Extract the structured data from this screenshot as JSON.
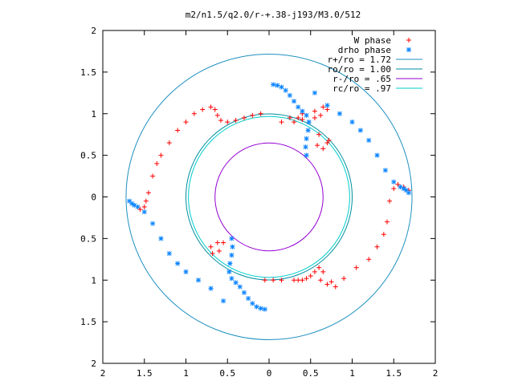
{
  "chart_data": {
    "type": "scatter",
    "title": "m2/n1.5/q2.0/r-+.38-j193/M3.0/512",
    "xlim": [
      -2,
      2
    ],
    "ylim": [
      -2,
      2
    ],
    "x_ticks": [
      "2",
      "1.5",
      "1",
      "0.5",
      "0",
      "0.5",
      "1",
      "1.5",
      "2"
    ],
    "y_ticks": [
      "2",
      "1.5",
      "1",
      "0.5",
      "0",
      "0.5",
      "1",
      "1.5",
      "2"
    ],
    "grid": false,
    "legend_position": "top-right",
    "series": [
      {
        "name": "W phase",
        "marker": "plus",
        "color": "#ff0000",
        "points": [
          [
            0.3,
            0.9
          ],
          [
            0.35,
            0.95
          ],
          [
            0.4,
            1.0
          ],
          [
            0.55,
            1.03
          ],
          [
            0.65,
            1.08
          ],
          [
            0.7,
            1.05
          ],
          [
            0.62,
            0.98
          ],
          [
            0.55,
            0.95
          ],
          [
            0.4,
            0.93
          ],
          [
            0.25,
            0.95
          ],
          [
            0.15,
            0.9
          ],
          [
            0.7,
            0.65
          ],
          [
            0.6,
            0.75
          ],
          [
            0.58,
            0.62
          ],
          [
            0.65,
            0.58
          ],
          [
            0.72,
            0.68
          ],
          [
            1.68,
            0.08
          ],
          [
            1.62,
            0.12
          ],
          [
            1.55,
            0.15
          ],
          [
            1.5,
            0.1
          ],
          [
            1.45,
            -0.05
          ],
          [
            1.42,
            -0.3
          ],
          [
            1.38,
            -0.45
          ],
          [
            1.3,
            -0.6
          ],
          [
            1.2,
            -0.75
          ],
          [
            1.05,
            -0.85
          ],
          [
            0.9,
            -0.98
          ],
          [
            0.8,
            -1.08
          ],
          [
            0.75,
            -1.02
          ],
          [
            0.7,
            -1.05
          ],
          [
            0.62,
            -1.0
          ],
          [
            0.65,
            -0.9
          ],
          [
            0.6,
            -0.85
          ],
          [
            0.55,
            -0.9
          ],
          [
            0.5,
            -0.95
          ],
          [
            0.45,
            -0.98
          ],
          [
            0.4,
            -1.0
          ],
          [
            0.35,
            -1.0
          ],
          [
            0.3,
            -1.0
          ],
          [
            0.15,
            -1.0
          ],
          [
            0.05,
            -1.0
          ],
          [
            -0.05,
            -1.0
          ],
          [
            -0.7,
            -0.6
          ],
          [
            -0.6,
            -0.65
          ],
          [
            -0.55,
            -0.55
          ],
          [
            -0.62,
            -0.55
          ],
          [
            -0.68,
            -0.68
          ],
          [
            -1.55,
            -0.15
          ],
          [
            -1.5,
            -0.12
          ],
          [
            -1.48,
            -0.05
          ],
          [
            -1.45,
            0.05
          ],
          [
            -1.4,
            0.25
          ],
          [
            -1.35,
            0.4
          ],
          [
            -1.3,
            0.5
          ],
          [
            -1.2,
            0.65
          ],
          [
            -1.1,
            0.8
          ],
          [
            -1.0,
            0.9
          ],
          [
            -0.9,
            1.0
          ],
          [
            -0.8,
            1.05
          ],
          [
            -0.7,
            1.08
          ],
          [
            -0.65,
            1.05
          ],
          [
            -0.62,
            0.98
          ],
          [
            -0.58,
            0.92
          ],
          [
            -0.5,
            0.9
          ],
          [
            -0.4,
            0.92
          ],
          [
            -0.3,
            0.95
          ],
          [
            -0.2,
            0.98
          ],
          [
            -0.1,
            1.0
          ]
        ]
      },
      {
        "name": "drho phase",
        "marker": "star",
        "color": "#0a84ff",
        "points": [
          [
            0.05,
            1.35
          ],
          [
            0.1,
            1.34
          ],
          [
            0.15,
            1.32
          ],
          [
            0.2,
            1.28
          ],
          [
            0.25,
            1.22
          ],
          [
            0.3,
            1.15
          ],
          [
            0.35,
            1.08
          ],
          [
            0.4,
            1.03
          ],
          [
            0.45,
            0.98
          ],
          [
            0.48,
            0.9
          ],
          [
            0.47,
            0.8
          ],
          [
            0.45,
            0.7
          ],
          [
            0.44,
            0.6
          ],
          [
            0.45,
            0.5
          ],
          [
            0.55,
            1.25
          ],
          [
            0.7,
            1.1
          ],
          [
            0.85,
            1.0
          ],
          [
            1.0,
            0.9
          ],
          [
            1.1,
            0.8
          ],
          [
            1.2,
            0.68
          ],
          [
            1.3,
            0.5
          ],
          [
            1.4,
            0.32
          ],
          [
            1.5,
            0.18
          ],
          [
            1.58,
            0.12
          ],
          [
            1.62,
            0.1
          ],
          [
            1.65,
            0.08
          ],
          [
            1.68,
            0.05
          ],
          [
            -0.05,
            -1.35
          ],
          [
            -0.1,
            -1.34
          ],
          [
            -0.15,
            -1.32
          ],
          [
            -0.2,
            -1.28
          ],
          [
            -0.25,
            -1.22
          ],
          [
            -0.3,
            -1.15
          ],
          [
            -0.35,
            -1.08
          ],
          [
            -0.4,
            -1.03
          ],
          [
            -0.45,
            -0.98
          ],
          [
            -0.48,
            -0.9
          ],
          [
            -0.47,
            -0.8
          ],
          [
            -0.45,
            -0.7
          ],
          [
            -0.44,
            -0.6
          ],
          [
            -0.45,
            -0.5
          ],
          [
            -0.55,
            -1.25
          ],
          [
            -0.7,
            -1.1
          ],
          [
            -0.85,
            -1.0
          ],
          [
            -1.0,
            -0.9
          ],
          [
            -1.1,
            -0.8
          ],
          [
            -1.2,
            -0.68
          ],
          [
            -1.3,
            -0.5
          ],
          [
            -1.4,
            -0.32
          ],
          [
            -1.5,
            -0.18
          ],
          [
            -1.58,
            -0.12
          ],
          [
            -1.62,
            -0.1
          ],
          [
            -1.65,
            -0.08
          ],
          [
            -1.68,
            -0.05
          ]
        ]
      },
      {
        "name": "r+/ro = 1.72",
        "type": "circle",
        "radius": 1.72,
        "color": "#1e90c0"
      },
      {
        "name": "ro/ro = 1.00",
        "type": "circle",
        "radius": 1.0,
        "color": "#008fa0"
      },
      {
        "name": "r-/ro =  .65",
        "type": "circle",
        "radius": 0.65,
        "color": "#9400d3"
      },
      {
        "name": "rc/ro =  .97",
        "type": "circle",
        "radius": 0.97,
        "color": "#00cccc"
      }
    ]
  }
}
